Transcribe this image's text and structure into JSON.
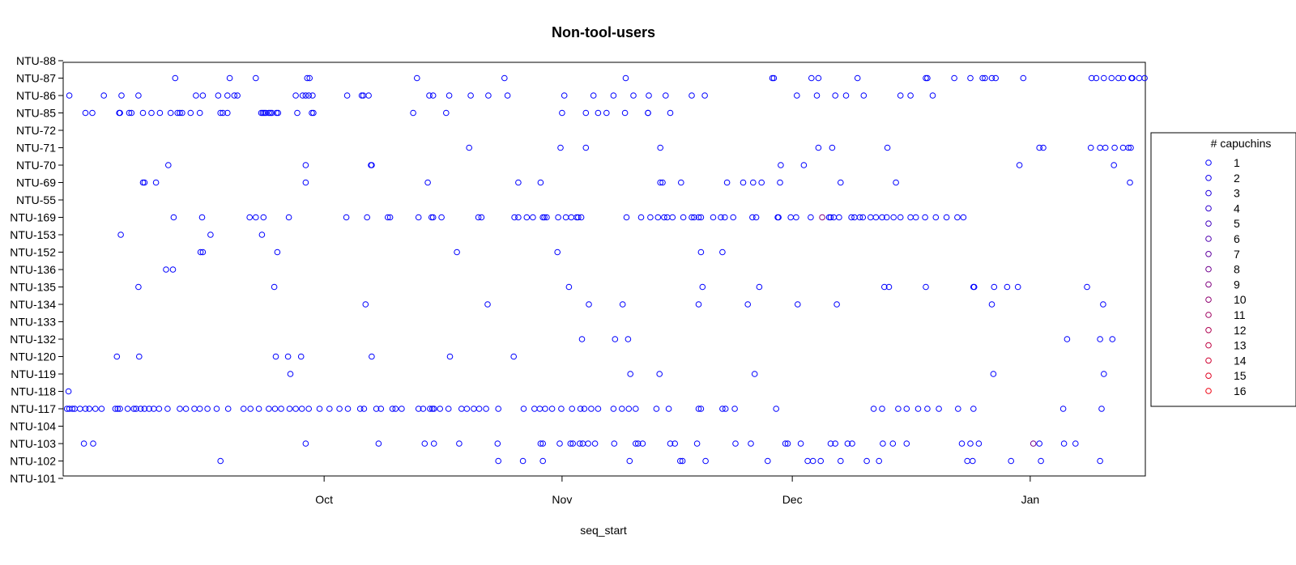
{
  "chart_data": {
    "type": "scatter",
    "title": "Non-tool-users",
    "xlabel": "seq_start",
    "ylabel": "",
    "x_unit": "days since Sep 1",
    "xlim": [
      -4,
      137
    ],
    "x_ticks": [
      {
        "label": "Oct",
        "value": 30
      },
      {
        "label": "Nov",
        "value": 61
      },
      {
        "label": "Dec",
        "value": 91
      },
      {
        "label": "Jan",
        "value": 122
      }
    ],
    "categories": [
      "NTU-101",
      "NTU-102",
      "NTU-103",
      "NTU-104",
      "NTU-117",
      "NTU-118",
      "NTU-119",
      "NTU-120",
      "NTU-132",
      "NTU-133",
      "NTU-134",
      "NTU-135",
      "NTU-136",
      "NTU-152",
      "NTU-153",
      "NTU-169",
      "NTU-55",
      "NTU-69",
      "NTU-70",
      "NTU-71",
      "NTU-72",
      "NTU-85",
      "NTU-86",
      "NTU-87",
      "NTU-88"
    ],
    "legend": {
      "title": "# capuchins",
      "position": "right",
      "entries": [
        {
          "label": "1",
          "color": "#0000ff"
        },
        {
          "label": "2",
          "color": "#1000ef"
        },
        {
          "label": "3",
          "color": "#2000df"
        },
        {
          "label": "4",
          "color": "#3000cf"
        },
        {
          "label": "5",
          "color": "#4000bf"
        },
        {
          "label": "6",
          "color": "#5000af"
        },
        {
          "label": "7",
          "color": "#60009f"
        },
        {
          "label": "8",
          "color": "#70008f"
        },
        {
          "label": "9",
          "color": "#80007f"
        },
        {
          "label": "10",
          "color": "#8f0070"
        },
        {
          "label": "11",
          "color": "#9f0060"
        },
        {
          "label": "12",
          "color": "#af0050"
        },
        {
          "label": "13",
          "color": "#bf0040"
        },
        {
          "label": "14",
          "color": "#cf0030"
        },
        {
          "label": "15",
          "color": "#df0020"
        },
        {
          "label": "16",
          "color": "#ef0010"
        }
      ]
    },
    "series": [
      {
        "name": "NTU-87",
        "x": [
          10.6,
          17.7,
          21.1,
          27.8,
          28.1,
          42.1,
          53.5,
          69.3,
          88.4,
          88.6,
          93.5,
          94.4,
          99.5,
          108.4,
          108.6,
          112.1,
          114.2,
          117.5,
          121.1,
          117,
          115.8,
          116.1,
          130,
          130.6,
          131.6,
          132.6,
          133.5,
          134.1,
          135.3,
          135.2,
          136.2,
          136.9
        ]
      },
      {
        "name": "NTU-86",
        "x": [
          -3.2,
          1.3,
          3.6,
          5.8,
          13.3,
          14.2,
          16.2,
          17.4,
          18.3,
          18.7,
          26.3,
          27.2,
          27.6,
          28,
          28.5,
          33,
          34.9,
          35.1,
          35.8,
          43.7,
          44.2,
          46.3,
          49.1,
          51.4,
          53.9,
          61.3,
          65.1,
          67.7,
          70.3,
          72.3,
          74.5,
          77.9,
          79.6,
          91.6,
          94.2,
          96.6,
          98,
          100.3,
          105.1,
          106.4,
          109.3
        ]
      },
      {
        "name": "NTU-85",
        "x": [
          -1.1,
          -0.2,
          3.3,
          3.4,
          4.6,
          4.9,
          6.4,
          7.5,
          8.6,
          10,
          10.9,
          11.2,
          11.5,
          12.6,
          13.8,
          16.5,
          16.8,
          17.4,
          21.8,
          22,
          22.2,
          22.4,
          22.8,
          23,
          23.2,
          23.8,
          24,
          26.5,
          28.4,
          28.6,
          41.6,
          45.9,
          61,
          64.1,
          65.7,
          66.8,
          69.2,
          72.2,
          72.2,
          75.1
        ]
      },
      {
        "name": "NTU-72",
        "x": []
      },
      {
        "name": "NTU-71",
        "x": [
          48.9,
          60.8,
          64.1,
          73.8,
          94.4,
          96.2,
          103.4,
          123.2,
          123.7,
          129.9,
          131.1,
          131.8,
          133,
          134.1,
          134.8,
          135.1
        ]
      },
      {
        "name": "NTU-70",
        "x": [
          9.7,
          27.6,
          36.1,
          36.2,
          89.5,
          92.5,
          120.6,
          132.9
        ]
      },
      {
        "name": "NTU-69",
        "x": [
          6.4,
          6.6,
          8.1,
          27.6,
          43.5,
          55.3,
          58.2,
          73.8,
          74.1,
          76.5,
          82.5,
          84.6,
          85.9,
          87,
          89.4,
          97.3,
          104.5,
          135
        ]
      },
      {
        "name": "NTU-55",
        "x": []
      },
      {
        "name": "NTU-169",
        "x": [
          10.4,
          14.1,
          20.3,
          21.1,
          22.1,
          25.4,
          32.9,
          35.6,
          38.3,
          38.6,
          42.3,
          44,
          44.2,
          45.3,
          50.1,
          50.5,
          54.8,
          55.3,
          56.4,
          57.2,
          58.5,
          58.7,
          59,
          60.5,
          61.5,
          62.2,
          62.9,
          63.1,
          63.5,
          69.4,
          71.3,
          72.5,
          73.5,
          74.3,
          74.7,
          75.4,
          76.8,
          77.9,
          78.2,
          78.8,
          79.1,
          80.7,
          81.7,
          82.2,
          83.3,
          85.8,
          86.3,
          89.1,
          89.2,
          90.8,
          91.5,
          93.4,
          95.8,
          96,
          96.4,
          97.1,
          98.7,
          99.1,
          99.8,
          100.2,
          101.2,
          101.9,
          102.7,
          103.3,
          104.2,
          105.1,
          106.4,
          107.1,
          108.3,
          109.7,
          111.1,
          112.5,
          113.3
        ]
      },
      {
        "name": "NTU-153",
        "x": [
          3.5,
          15.2,
          21.9
        ]
      },
      {
        "name": "NTU-152",
        "x": [
          13.9,
          14.2,
          23.9,
          47.3,
          60.4,
          79.1,
          81.9
        ]
      },
      {
        "name": "NTU-136",
        "x": [
          9.4,
          10.3
        ]
      },
      {
        "name": "NTU-135",
        "x": [
          5.8,
          23.5,
          61.9,
          79.3,
          86.7,
          103,
          103.6,
          108.4,
          114.6,
          114.7,
          117.3,
          119,
          120.4,
          129.4
        ]
      },
      {
        "name": "NTU-134",
        "x": [
          35.4,
          51.3,
          64.5,
          68.9,
          78.8,
          85.2,
          91.7,
          96.8,
          117,
          131.5
        ]
      },
      {
        "name": "NTU-133",
        "x": []
      },
      {
        "name": "NTU-132",
        "x": [
          63.6,
          67.9,
          69.6,
          126.8,
          131.1,
          132.7
        ]
      },
      {
        "name": "NTU-120",
        "x": [
          3,
          5.9,
          23.7,
          25.3,
          27,
          36.2,
          46.4,
          54.7
        ]
      },
      {
        "name": "NTU-119",
        "x": [
          25.6,
          69.9,
          73.7,
          86.1,
          117.2,
          131.6
        ]
      },
      {
        "name": "NTU-118",
        "x": [
          -3.3
        ]
      },
      {
        "name": "NTU-117",
        "x": [
          -3.5,
          -3.2,
          -2.8,
          -2.5,
          -1.8,
          -1.1,
          -0.6,
          0.2,
          1,
          2.8,
          3.1,
          3.4,
          4.4,
          5.2,
          5.5,
          6.1,
          6.6,
          7.2,
          7.8,
          8.5,
          9.6,
          11.2,
          12,
          13.1,
          13.8,
          14.8,
          16,
          17.5,
          19.5,
          20.4,
          21.5,
          22.8,
          23.6,
          24.4,
          25.5,
          26.3,
          27.1,
          28,
          29.4,
          30.7,
          32,
          33.1,
          34.7,
          35.2,
          36.8,
          37.4,
          38.9,
          39.3,
          40.1,
          42.3,
          42.9,
          43.8,
          44.1,
          44.3,
          45.1,
          46.2,
          47.9,
          48.6,
          49.5,
          50.2,
          51.1,
          52.7,
          56,
          57.4,
          58.1,
          58.8,
          59.7,
          60.9,
          62.3,
          63.4,
          63.9,
          64.8,
          65.7,
          67.7,
          68.8,
          69.7,
          70.6,
          73.3,
          74.9,
          78.8,
          79.1,
          81.9,
          82.3,
          83.5,
          88.9,
          101.6,
          102.7,
          104.8,
          105.9,
          107.4,
          108.6,
          110.1,
          112.6,
          114.6,
          126.3,
          131.3
        ]
      },
      {
        "name": "NTU-104",
        "x": []
      },
      {
        "name": "NTU-103",
        "x": [
          -1.3,
          -0.1,
          27.6,
          37.1,
          43.1,
          44.3,
          47.6,
          52.6,
          58.2,
          58.5,
          60.7,
          62.1,
          62.4,
          63.3,
          63.7,
          64.4,
          65.3,
          67.8,
          70.6,
          70.9,
          71.5,
          75.1,
          75.7,
          78.6,
          83.6,
          85.6,
          90.1,
          90.4,
          92.1,
          96,
          96.6,
          98.2,
          98.8,
          102.8,
          104.1,
          105.9,
          113.1,
          114.2,
          115.3,
          123.2,
          126.4,
          127.9
        ]
      },
      {
        "name": "NTU-102",
        "x": [
          16.5,
          52.7,
          55.9,
          58.5,
          69.8,
          76.4,
          76.7,
          79.7,
          87.8,
          93,
          93.7,
          94.7,
          97.3,
          100.7,
          102.3,
          113.8,
          114.5,
          119.5,
          123.4,
          131.1
        ]
      },
      {
        "name": "NTU-101",
        "x": []
      },
      {
        "name": "NTU-88",
        "x": []
      }
    ],
    "highlighted_points": [
      {
        "series": "NTU-169",
        "x": 94.9,
        "legend_value": "9"
      },
      {
        "series": "NTU-103",
        "x": 122.4,
        "legend_value": "8"
      }
    ]
  }
}
